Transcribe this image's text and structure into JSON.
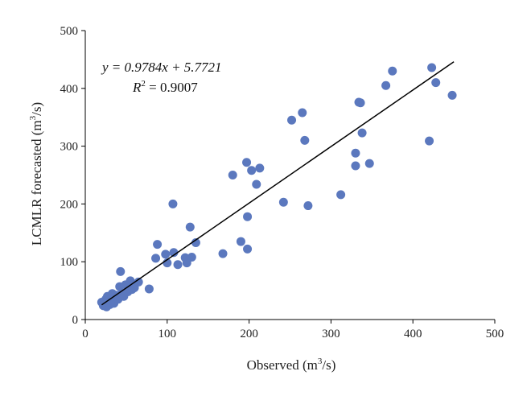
{
  "chart_data": {
    "type": "scatter",
    "xlabel": "Observed (m³/s)",
    "xlabel_main": "Observed (m",
    "xlabel_sup": "3",
    "xlabel_tail": "/s)",
    "ylabel_main": "LCMLR forecasted (m",
    "ylabel_sup": "3",
    "ylabel_tail": "/s)",
    "xlim": [
      0,
      500
    ],
    "ylim": [
      0,
      500
    ],
    "xticks": [
      "0",
      "100",
      "200",
      "300",
      "400",
      "500"
    ],
    "yticks": [
      "0",
      "100",
      "200",
      "300",
      "400",
      "500"
    ],
    "annotation": {
      "equation": "y = 0.9784x + 5.7721",
      "r2_label": "R",
      "r2_sup": "2",
      "r2_value": " = 0.9007"
    },
    "fit": {
      "slope": 0.9784,
      "intercept": 5.7721,
      "x_range": [
        20,
        450
      ]
    },
    "marker_color": "#5b78be",
    "line_color": "#000000",
    "grid": false,
    "points": [
      [
        20,
        30
      ],
      [
        22,
        24
      ],
      [
        24,
        28
      ],
      [
        25,
        35
      ],
      [
        26,
        22
      ],
      [
        27,
        40
      ],
      [
        28,
        32
      ],
      [
        30,
        26
      ],
      [
        31,
        36
      ],
      [
        32,
        30
      ],
      [
        33,
        45
      ],
      [
        35,
        28
      ],
      [
        36,
        38
      ],
      [
        38,
        42
      ],
      [
        40,
        35
      ],
      [
        42,
        57
      ],
      [
        43,
        83
      ],
      [
        45,
        45
      ],
      [
        47,
        40
      ],
      [
        49,
        60
      ],
      [
        52,
        48
      ],
      [
        55,
        67
      ],
      [
        57,
        52
      ],
      [
        60,
        55
      ],
      [
        65,
        65
      ],
      [
        78,
        53
      ],
      [
        86,
        106
      ],
      [
        88,
        130
      ],
      [
        98,
        113
      ],
      [
        100,
        98
      ],
      [
        107,
        200
      ],
      [
        108,
        116
      ],
      [
        113,
        95
      ],
      [
        122,
        107
      ],
      [
        124,
        98
      ],
      [
        128,
        160
      ],
      [
        130,
        108
      ],
      [
        135,
        133
      ],
      [
        168,
        114
      ],
      [
        180,
        250
      ],
      [
        190,
        135
      ],
      [
        197,
        272
      ],
      [
        198,
        122
      ],
      [
        198,
        178
      ],
      [
        203,
        258
      ],
      [
        209,
        234
      ],
      [
        213,
        262
      ],
      [
        242,
        203
      ],
      [
        252,
        345
      ],
      [
        265,
        358
      ],
      [
        268,
        310
      ],
      [
        272,
        197
      ],
      [
        312,
        216
      ],
      [
        330,
        288
      ],
      [
        330,
        266
      ],
      [
        334,
        376
      ],
      [
        336,
        375
      ],
      [
        338,
        323
      ],
      [
        347,
        270
      ],
      [
        367,
        405
      ],
      [
        375,
        430
      ],
      [
        420,
        309
      ],
      [
        423,
        436
      ],
      [
        428,
        410
      ],
      [
        448,
        388
      ]
    ]
  }
}
